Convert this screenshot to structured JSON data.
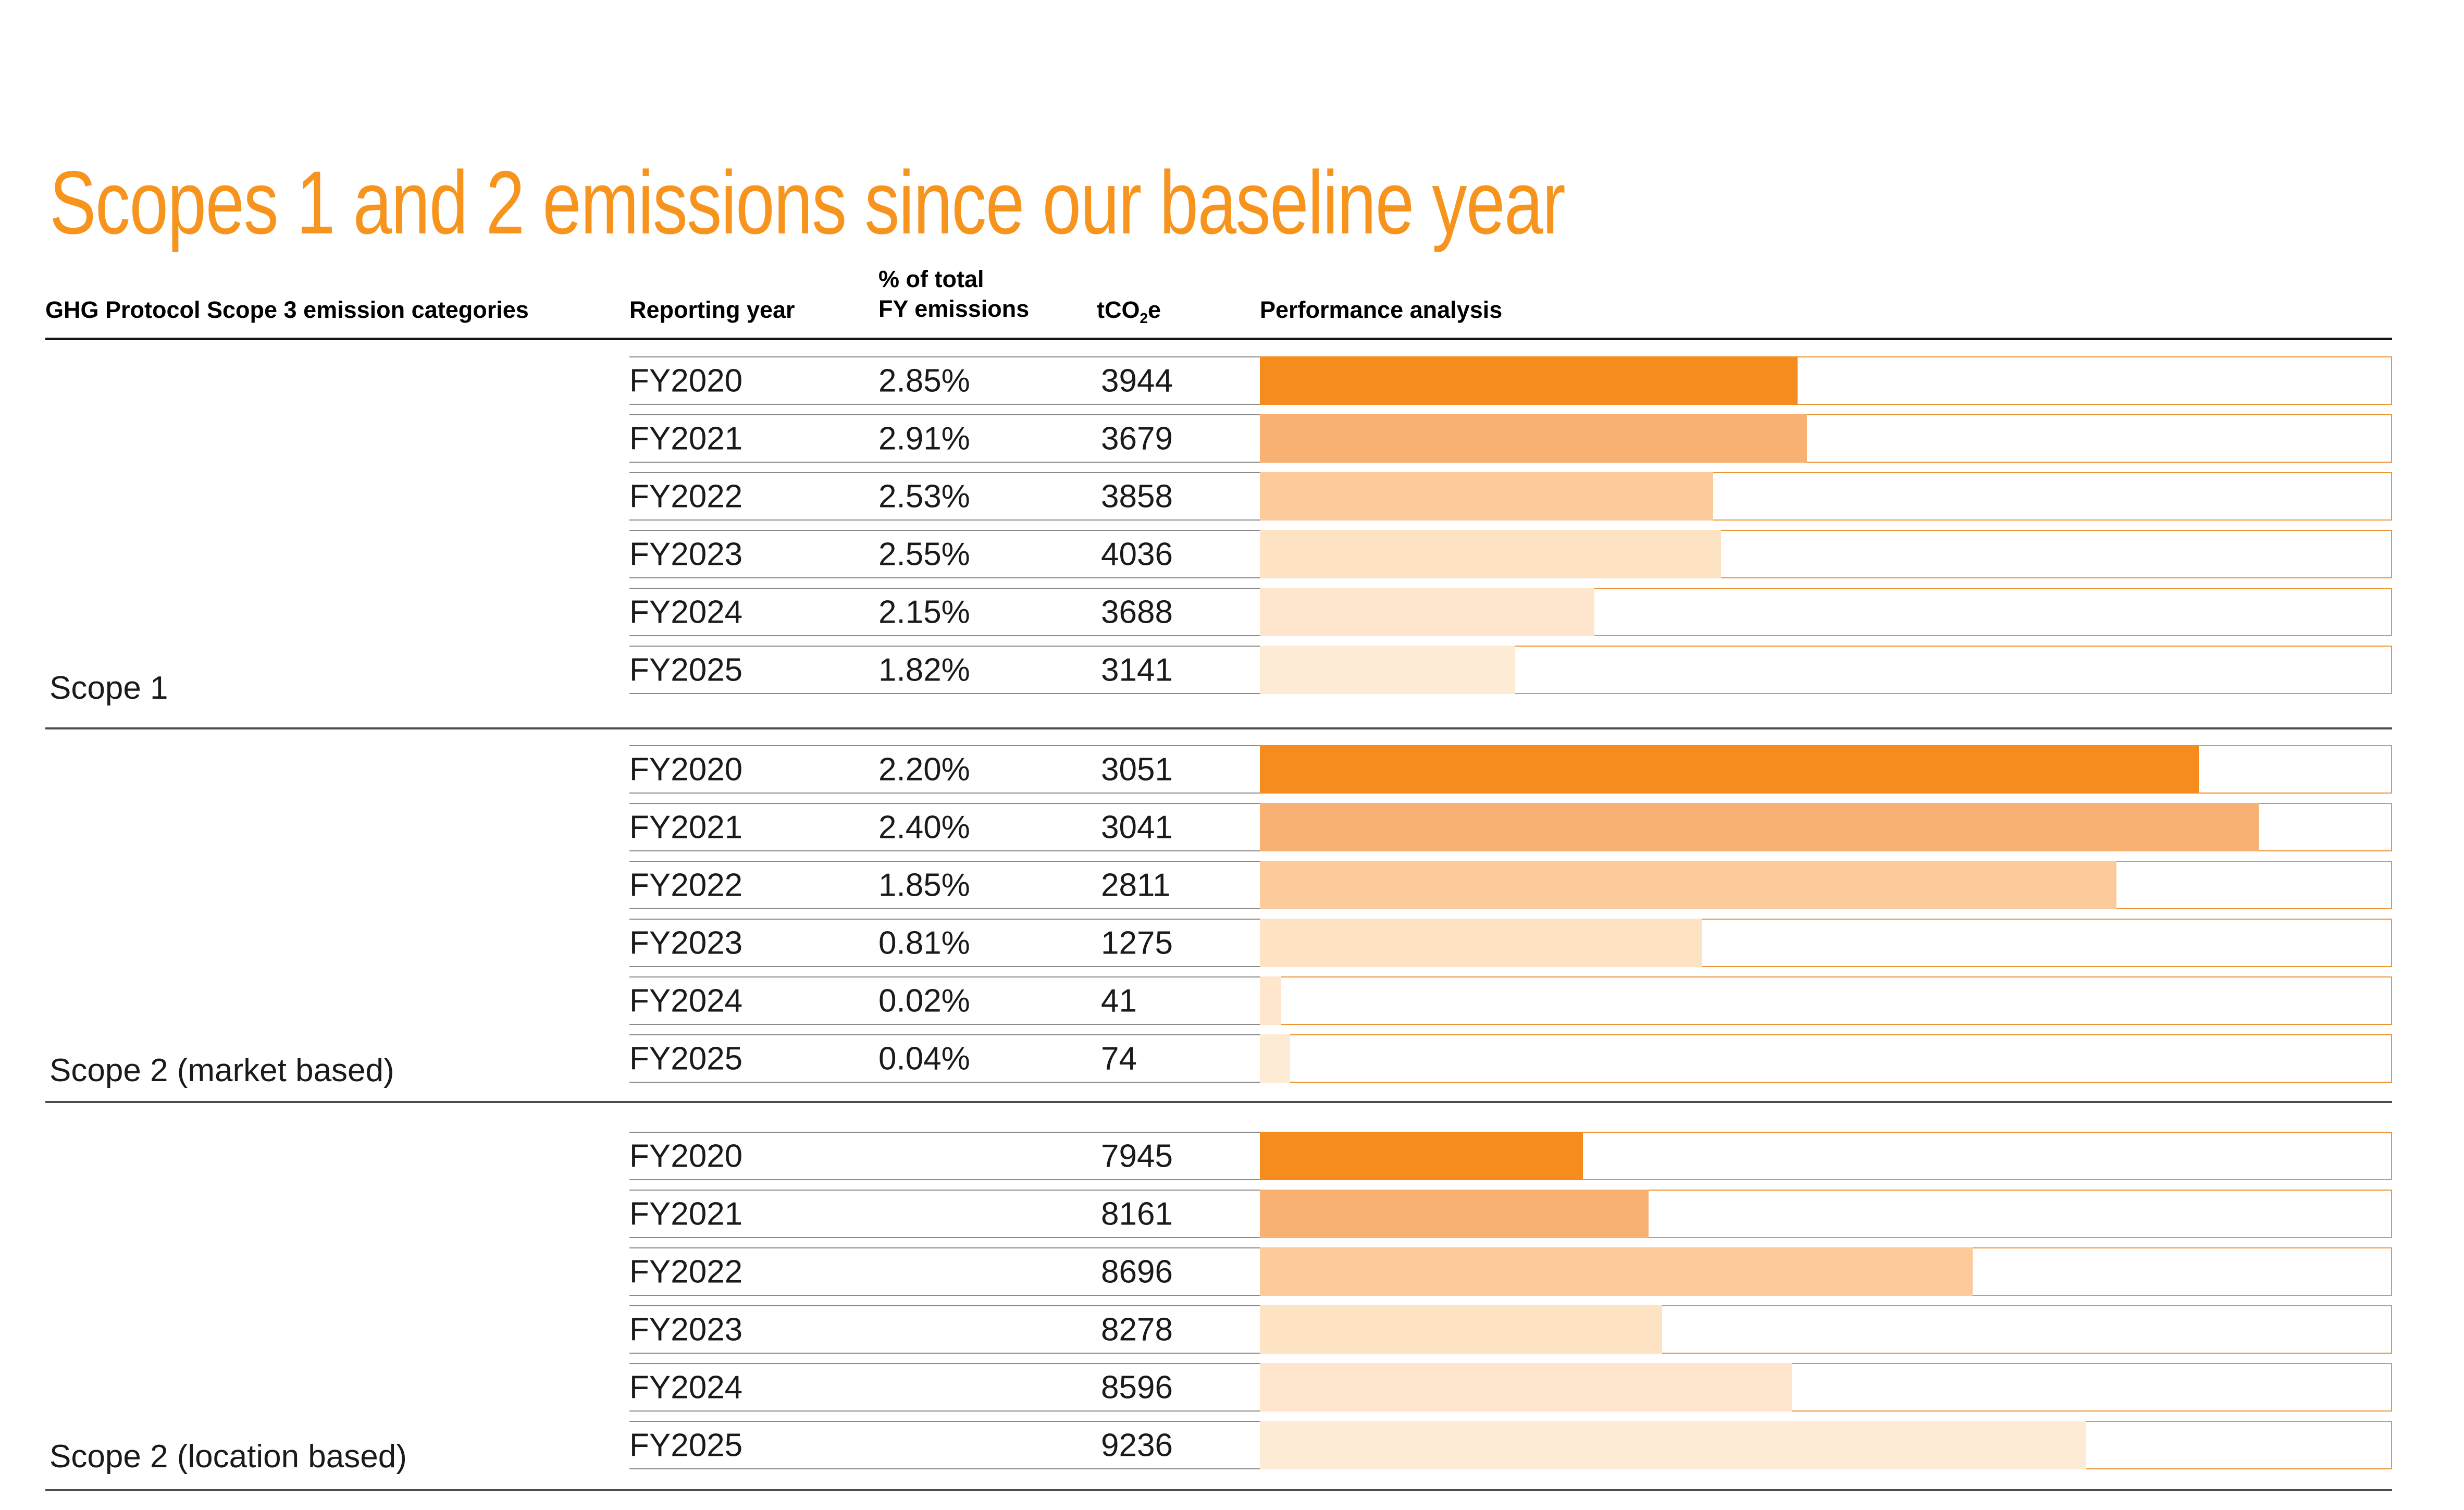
{
  "page": {
    "title": "Scopes 1 and 2 emissions since our baseline year"
  },
  "colors": {
    "title_orange": "#F7941E",
    "bar_track_border": "#ED9434",
    "row_separator_gray": "#8C8C8C",
    "group_divider_gray": "#4D4D4D",
    "header_rule_black": "#141414",
    "year_fill": {
      "FY2020": "#F68C1E",
      "FY2021": "#F9B173",
      "FY2022": "#FCCA9B",
      "FY2023": "#FDE2C3",
      "FY2024": "#FDE6CC",
      "FY2025": "#FEEBD5"
    }
  },
  "table": {
    "headers": {
      "categories": "GHG Protocol Scope 3 emission categories",
      "reporting_year": "Reporting year",
      "pct_line1": "% of total",
      "pct_line2": "FY emissions",
      "tco2e_pre": "tCO",
      "tco2e_sub": "2",
      "tco2e_post": "e",
      "performance": "Performance analysis"
    },
    "groups": [
      {
        "label": "Scope 1",
        "rows": [
          {
            "year": "FY2020",
            "pct": "2.85%",
            "tco2e": "3944",
            "bar_pct": 47.5
          },
          {
            "year": "FY2021",
            "pct": "2.91%",
            "tco2e": "3679",
            "bar_pct": 48.3
          },
          {
            "year": "FY2022",
            "pct": "2.53%",
            "tco2e": "3858",
            "bar_pct": 40.0
          },
          {
            "year": "FY2023",
            "pct": "2.55%",
            "tco2e": "4036",
            "bar_pct": 40.7
          },
          {
            "year": "FY2024",
            "pct": "2.15%",
            "tco2e": "3688",
            "bar_pct": 29.5
          },
          {
            "year": "FY2025",
            "pct": "1.82%",
            "tco2e": "3141",
            "bar_pct": 22.5
          }
        ]
      },
      {
        "label": "Scope 2 (market based)",
        "rows": [
          {
            "year": "FY2020",
            "pct": "2.20%",
            "tco2e": "3051",
            "bar_pct": 83.0
          },
          {
            "year": "FY2021",
            "pct": "2.40%",
            "tco2e": "3041",
            "bar_pct": 88.3
          },
          {
            "year": "FY2022",
            "pct": "1.85%",
            "tco2e": "2811",
            "bar_pct": 75.7
          },
          {
            "year": "FY2023",
            "pct": "0.81%",
            "tco2e": "1275",
            "bar_pct": 39.0
          },
          {
            "year": "FY2024",
            "pct": "0.02%",
            "tco2e": "41",
            "bar_pct": 1.8
          },
          {
            "year": "FY2025",
            "pct": "0.04%",
            "tco2e": "74",
            "bar_pct": 2.6
          }
        ]
      },
      {
        "label": "Scope 2 (location based)",
        "rows": [
          {
            "year": "FY2020",
            "pct": "",
            "tco2e": "7945",
            "bar_pct": 28.5
          },
          {
            "year": "FY2021",
            "pct": "",
            "tco2e": "8161",
            "bar_pct": 34.3
          },
          {
            "year": "FY2022",
            "pct": "",
            "tco2e": "8696",
            "bar_pct": 63.0
          },
          {
            "year": "FY2023",
            "pct": "",
            "tco2e": "8278",
            "bar_pct": 35.5
          },
          {
            "year": "FY2024",
            "pct": "",
            "tco2e": "8596",
            "bar_pct": 47.0
          },
          {
            "year": "FY2025",
            "pct": "",
            "tco2e": "9236",
            "bar_pct": 73.0
          }
        ]
      }
    ]
  },
  "chart_data": {
    "type": "bar",
    "title": "Scopes 1 and 2 emissions since our baseline year",
    "categories": [
      "FY2020",
      "FY2021",
      "FY2022",
      "FY2023",
      "FY2024",
      "FY2025"
    ],
    "series": [
      {
        "name": "Scope 1",
        "tco2e": [
          3944,
          3679,
          3858,
          4036,
          3688,
          3141
        ],
        "pct_of_total_fy_emissions": [
          2.85,
          2.91,
          2.53,
          2.55,
          2.15,
          1.82
        ],
        "bar_fill_fraction_of_track": [
          0.475,
          0.483,
          0.4,
          0.407,
          0.295,
          0.225
        ]
      },
      {
        "name": "Scope 2 (market based)",
        "tco2e": [
          3051,
          3041,
          2811,
          1275,
          41,
          74
        ],
        "pct_of_total_fy_emissions": [
          2.2,
          2.4,
          1.85,
          0.81,
          0.02,
          0.04
        ],
        "bar_fill_fraction_of_track": [
          0.83,
          0.883,
          0.757,
          0.39,
          0.018,
          0.026
        ]
      },
      {
        "name": "Scope 2 (location based)",
        "tco2e": [
          7945,
          8161,
          8696,
          8278,
          8596,
          9236
        ],
        "pct_of_total_fy_emissions": [
          null,
          null,
          null,
          null,
          null,
          null
        ],
        "bar_fill_fraction_of_track": [
          0.285,
          0.343,
          0.63,
          0.355,
          0.47,
          0.73
        ]
      }
    ],
    "xlabel": "Reporting year",
    "ylabel": "tCO2e",
    "legend_position": "none",
    "grid": false,
    "bars_horizontal": true,
    "bar_color_by_year": true
  }
}
